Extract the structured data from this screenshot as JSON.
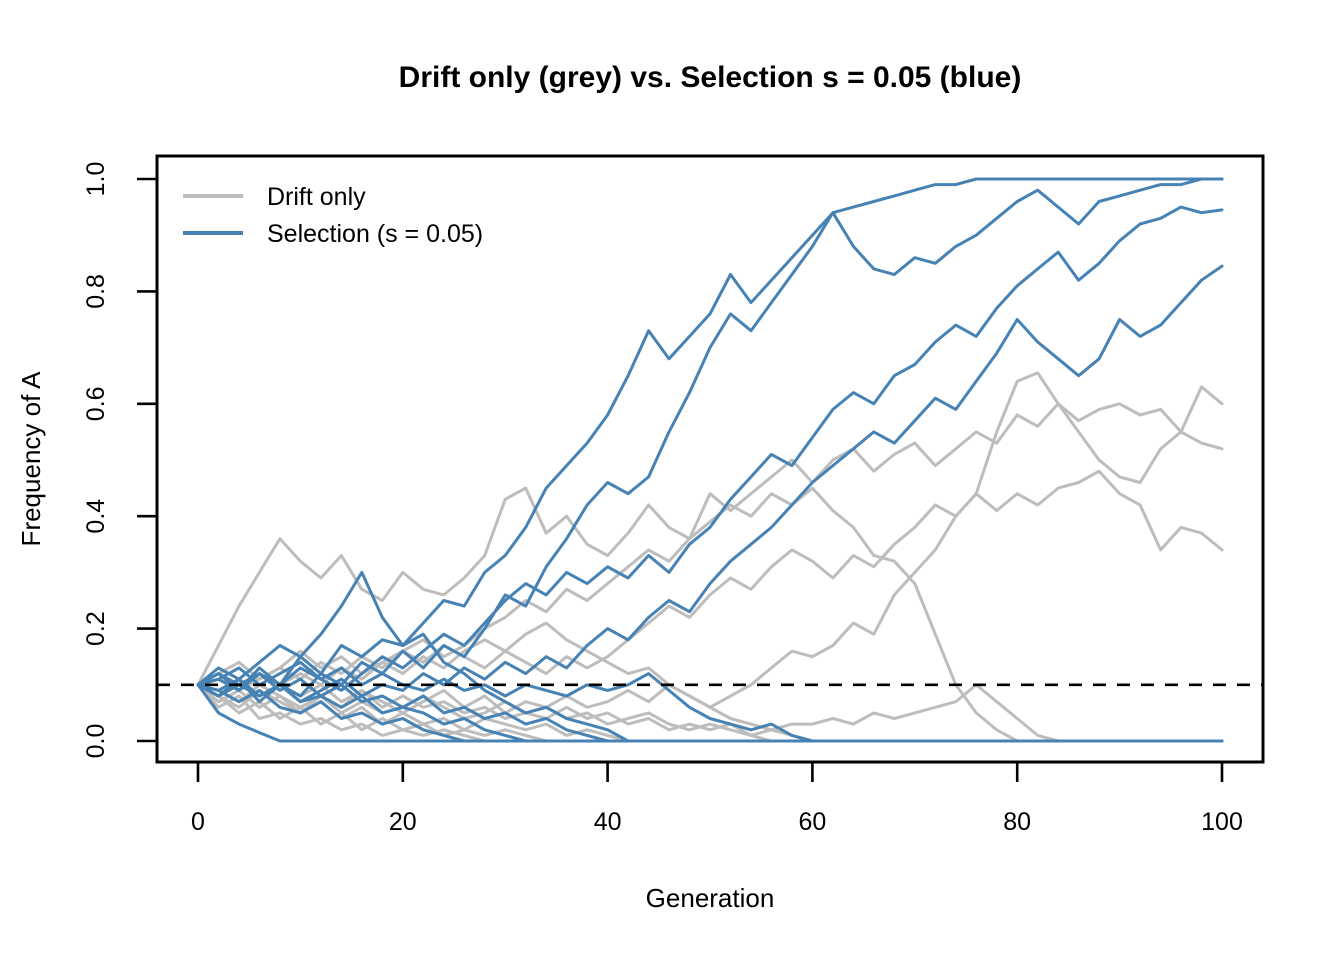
{
  "figure": {
    "background": "#ffffff"
  },
  "colors": {
    "grey_series": "#bdbdbd",
    "blue_series": "#4682B4",
    "axis": "#000000",
    "reference_line": "#000000",
    "text": "#000000"
  },
  "chart_data": {
    "type": "line",
    "title": "Drift only (grey) vs. Selection s = 0.05 (blue)",
    "xlabel": "Generation",
    "ylabel": "Frequency of A",
    "xlim": [
      0,
      100
    ],
    "ylim": [
      0,
      1
    ],
    "grid": false,
    "x_ticks": [
      0,
      20,
      40,
      60,
      80,
      100
    ],
    "x_tick_labels": [
      "0",
      "20",
      "40",
      "60",
      "80",
      "100"
    ],
    "y_ticks": [
      0,
      0.2,
      0.4,
      0.6,
      0.8,
      1.0
    ],
    "y_tick_labels": [
      "0.0",
      "0.2",
      "0.4",
      "0.6",
      "0.8",
      "1.0"
    ],
    "legend": {
      "position": "top-left",
      "box": false,
      "entries": [
        {
          "label": "Drift only",
          "color_key": "grey_series"
        },
        {
          "label": "Selection (s = 0.05)",
          "color_key": "blue_series"
        }
      ]
    },
    "reference_line": {
      "y": 0.1,
      "style": "dashed",
      "color_key": "reference_line"
    },
    "x": [
      0,
      2,
      4,
      6,
      8,
      10,
      12,
      14,
      16,
      18,
      20,
      22,
      24,
      26,
      28,
      30,
      32,
      34,
      36,
      38,
      40,
      42,
      44,
      46,
      48,
      50,
      52,
      54,
      56,
      58,
      60,
      62,
      64,
      66,
      68,
      70,
      72,
      74,
      76,
      78,
      80,
      82,
      84,
      86,
      88,
      90,
      92,
      94,
      96,
      98,
      100
    ],
    "series": [
      {
        "name": "drift-1",
        "group": "grey_series",
        "values": [
          0.1,
          0.17,
          0.24,
          0.3,
          0.36,
          0.32,
          0.29,
          0.33,
          0.27,
          0.25,
          0.3,
          0.27,
          0.26,
          0.29,
          0.33,
          0.43,
          0.45,
          0.37,
          0.4,
          0.35,
          0.33,
          0.37,
          0.42,
          0.38,
          0.36,
          0.44,
          0.41,
          0.44,
          0.47,
          0.5,
          0.46,
          0.5,
          0.52,
          0.48,
          0.51,
          0.53,
          0.49,
          0.52,
          0.55,
          0.53,
          0.58,
          0.56,
          0.6,
          0.57,
          0.59,
          0.6,
          0.58,
          0.59,
          0.55,
          0.53,
          0.52
        ]
      },
      {
        "name": "drift-2",
        "group": "grey_series",
        "values": [
          0.1,
          0.08,
          0.06,
          0.09,
          0.07,
          0.05,
          0.08,
          0.06,
          0.09,
          0.07,
          0.05,
          0.07,
          0.09,
          0.06,
          0.08,
          0.05,
          0.07,
          0.06,
          0.08,
          0.06,
          0.07,
          0.09,
          0.07,
          0.1,
          0.08,
          0.06,
          0.08,
          0.1,
          0.13,
          0.16,
          0.15,
          0.17,
          0.21,
          0.19,
          0.26,
          0.3,
          0.34,
          0.4,
          0.44,
          0.55,
          0.64,
          0.655,
          0.6,
          0.55,
          0.5,
          0.47,
          0.46,
          0.52,
          0.55,
          0.63,
          0.6
        ]
      },
      {
        "name": "drift-3",
        "group": "grey_series",
        "values": [
          0.1,
          0.12,
          0.14,
          0.11,
          0.13,
          0.16,
          0.13,
          0.15,
          0.12,
          0.14,
          0.16,
          0.14,
          0.17,
          0.15,
          0.13,
          0.16,
          0.14,
          0.12,
          0.15,
          0.13,
          0.15,
          0.18,
          0.21,
          0.24,
          0.22,
          0.26,
          0.29,
          0.27,
          0.31,
          0.34,
          0.32,
          0.29,
          0.33,
          0.31,
          0.35,
          0.38,
          0.42,
          0.4,
          0.44,
          0.41,
          0.44,
          0.42,
          0.45,
          0.46,
          0.48,
          0.44,
          0.42,
          0.34,
          0.38,
          0.37,
          0.34
        ]
      },
      {
        "name": "drift-4",
        "group": "grey_series",
        "values": [
          0.1,
          0.09,
          0.11,
          0.08,
          0.1,
          0.12,
          0.1,
          0.13,
          0.11,
          0.14,
          0.12,
          0.15,
          0.13,
          0.16,
          0.18,
          0.16,
          0.19,
          0.21,
          0.18,
          0.16,
          0.14,
          0.12,
          0.13,
          0.1,
          0.08,
          0.06,
          0.04,
          0.03,
          0.02,
          0.03,
          0.03,
          0.04,
          0.03,
          0.05,
          0.04,
          0.05,
          0.06,
          0.07,
          0.1,
          0.07,
          0.04,
          0.01,
          0,
          0,
          0,
          0,
          0,
          0,
          0,
          0,
          0
        ]
      },
      {
        "name": "drift-5",
        "group": "grey_series",
        "values": [
          0.1,
          0.07,
          0.09,
          0.06,
          0.08,
          0.05,
          0.07,
          0.04,
          0.06,
          0.03,
          0.05,
          0.03,
          0.04,
          0.02,
          0.04,
          0.03,
          0.02,
          0.03,
          0.01,
          0.02,
          0.01,
          0,
          0,
          0,
          0,
          0,
          0,
          0,
          0,
          0,
          0,
          0,
          0,
          0,
          0,
          0,
          0,
          0,
          0,
          0,
          0,
          0,
          0,
          0,
          0,
          0,
          0,
          0,
          0,
          0,
          0
        ]
      },
      {
        "name": "drift-6",
        "group": "grey_series",
        "values": [
          0.1,
          0.08,
          0.05,
          0.07,
          0.04,
          0.06,
          0.03,
          0.05,
          0.02,
          0.04,
          0.02,
          0.03,
          0.01,
          0.02,
          0.01,
          0.02,
          0.01,
          0,
          0,
          0,
          0,
          0,
          0,
          0,
          0,
          0,
          0,
          0,
          0,
          0,
          0,
          0,
          0,
          0,
          0,
          0,
          0,
          0,
          0,
          0,
          0,
          0,
          0,
          0,
          0,
          0,
          0,
          0,
          0,
          0,
          0
        ]
      },
      {
        "name": "drift-7",
        "group": "grey_series",
        "values": [
          0.1,
          0.06,
          0.08,
          0.04,
          0.05,
          0.03,
          0.04,
          0.02,
          0.03,
          0.01,
          0.02,
          0.01,
          0.02,
          0.01,
          0,
          0,
          0,
          0,
          0,
          0,
          0,
          0,
          0,
          0,
          0,
          0,
          0,
          0,
          0,
          0,
          0,
          0,
          0,
          0,
          0,
          0,
          0,
          0,
          0,
          0,
          0,
          0,
          0,
          0,
          0,
          0,
          0,
          0,
          0,
          0,
          0
        ]
      },
      {
        "name": "drift-8",
        "group": "grey_series",
        "values": [
          0.1,
          0.11,
          0.09,
          0.12,
          0.1,
          0.08,
          0.1,
          0.07,
          0.09,
          0.06,
          0.08,
          0.06,
          0.07,
          0.05,
          0.06,
          0.04,
          0.05,
          0.06,
          0.04,
          0.05,
          0.03,
          0.04,
          0.05,
          0.03,
          0.02,
          0.03,
          0.02,
          0.01,
          0,
          0,
          0,
          0,
          0,
          0,
          0,
          0,
          0,
          0,
          0,
          0,
          0,
          0,
          0,
          0,
          0,
          0,
          0,
          0,
          0,
          0,
          0
        ]
      },
      {
        "name": "drift-9",
        "group": "grey_series",
        "values": [
          0.1,
          0.12,
          0.09,
          0.11,
          0.13,
          0.11,
          0.14,
          0.12,
          0.15,
          0.13,
          0.16,
          0.18,
          0.15,
          0.17,
          0.2,
          0.22,
          0.25,
          0.23,
          0.27,
          0.25,
          0.28,
          0.31,
          0.34,
          0.32,
          0.36,
          0.39,
          0.42,
          0.4,
          0.44,
          0.42,
          0.45,
          0.41,
          0.38,
          0.33,
          0.32,
          0.28,
          0.19,
          0.1,
          0.05,
          0.02,
          0,
          0,
          0,
          0,
          0,
          0,
          0,
          0,
          0,
          0,
          0
        ]
      },
      {
        "name": "drift-10",
        "group": "grey_series",
        "values": [
          0.1,
          0.09,
          0.07,
          0.1,
          0.08,
          0.06,
          0.08,
          0.05,
          0.07,
          0.05,
          0.06,
          0.08,
          0.06,
          0.04,
          0.05,
          0.07,
          0.05,
          0.04,
          0.06,
          0.04,
          0.05,
          0.03,
          0.04,
          0.02,
          0.03,
          0.02,
          0.03,
          0.01,
          0.02,
          0.01,
          0,
          0,
          0,
          0,
          0,
          0,
          0,
          0,
          0,
          0,
          0,
          0,
          0,
          0,
          0,
          0,
          0,
          0,
          0,
          0,
          0
        ]
      },
      {
        "name": "selection-1",
        "group": "blue_series",
        "values": [
          0.1,
          0.12,
          0.09,
          0.13,
          0.1,
          0.15,
          0.12,
          0.17,
          0.15,
          0.18,
          0.17,
          0.21,
          0.25,
          0.24,
          0.3,
          0.33,
          0.38,
          0.45,
          0.49,
          0.53,
          0.58,
          0.65,
          0.73,
          0.68,
          0.72,
          0.76,
          0.83,
          0.78,
          0.82,
          0.86,
          0.9,
          0.94,
          0.95,
          0.96,
          0.97,
          0.98,
          0.99,
          0.99,
          1.0,
          1.0,
          1.0,
          1.0,
          1.0,
          1.0,
          1.0,
          1.0,
          1.0,
          1.0,
          1.0,
          1.0,
          1.0
        ]
      },
      {
        "name": "selection-2",
        "group": "blue_series",
        "values": [
          0.1,
          0.08,
          0.11,
          0.07,
          0.1,
          0.08,
          0.12,
          0.1,
          0.14,
          0.12,
          0.16,
          0.13,
          0.17,
          0.15,
          0.2,
          0.26,
          0.24,
          0.31,
          0.36,
          0.42,
          0.46,
          0.44,
          0.47,
          0.55,
          0.62,
          0.7,
          0.76,
          0.73,
          0.78,
          0.83,
          0.88,
          0.94,
          0.88,
          0.84,
          0.83,
          0.86,
          0.85,
          0.88,
          0.9,
          0.93,
          0.96,
          0.98,
          0.95,
          0.92,
          0.96,
          0.97,
          0.98,
          0.99,
          0.99,
          1.0,
          1.0
        ]
      },
      {
        "name": "selection-3",
        "group": "blue_series",
        "values": [
          0.1,
          0.11,
          0.09,
          0.12,
          0.1,
          0.13,
          0.11,
          0.09,
          0.12,
          0.15,
          0.13,
          0.16,
          0.19,
          0.17,
          0.21,
          0.25,
          0.28,
          0.26,
          0.3,
          0.28,
          0.31,
          0.29,
          0.33,
          0.3,
          0.35,
          0.38,
          0.43,
          0.47,
          0.51,
          0.49,
          0.54,
          0.59,
          0.62,
          0.6,
          0.65,
          0.67,
          0.71,
          0.74,
          0.72,
          0.77,
          0.81,
          0.84,
          0.87,
          0.82,
          0.85,
          0.89,
          0.92,
          0.93,
          0.95,
          0.94,
          0.945
        ]
      },
      {
        "name": "selection-4",
        "group": "blue_series",
        "values": [
          0.1,
          0.09,
          0.11,
          0.08,
          0.1,
          0.07,
          0.09,
          0.11,
          0.08,
          0.1,
          0.09,
          0.12,
          0.1,
          0.13,
          0.11,
          0.14,
          0.12,
          0.15,
          0.13,
          0.17,
          0.2,
          0.18,
          0.22,
          0.25,
          0.23,
          0.28,
          0.32,
          0.35,
          0.38,
          0.42,
          0.46,
          0.49,
          0.52,
          0.55,
          0.53,
          0.57,
          0.61,
          0.59,
          0.64,
          0.69,
          0.75,
          0.71,
          0.68,
          0.65,
          0.68,
          0.75,
          0.72,
          0.74,
          0.78,
          0.82,
          0.845
        ]
      },
      {
        "name": "selection-5",
        "group": "blue_series",
        "values": [
          0.1,
          0.05,
          0.03,
          0.015,
          0,
          0,
          0,
          0,
          0,
          0,
          0,
          0,
          0,
          0,
          0,
          0,
          0,
          0,
          0,
          0,
          0,
          0,
          0,
          0,
          0,
          0,
          0,
          0,
          0,
          0,
          0,
          0,
          0,
          0,
          0,
          0,
          0,
          0,
          0,
          0,
          0,
          0,
          0,
          0,
          0,
          0,
          0,
          0,
          0,
          0,
          0
        ]
      },
      {
        "name": "selection-6",
        "group": "blue_series",
        "values": [
          0.1,
          0.09,
          0.07,
          0.09,
          0.06,
          0.05,
          0.07,
          0.04,
          0.05,
          0.03,
          0.04,
          0.02,
          0.01,
          0,
          0,
          0,
          0,
          0,
          0,
          0,
          0,
          0,
          0,
          0,
          0,
          0,
          0,
          0,
          0,
          0,
          0,
          0,
          0,
          0,
          0,
          0,
          0,
          0,
          0,
          0,
          0,
          0,
          0,
          0,
          0,
          0,
          0,
          0,
          0,
          0,
          0
        ]
      },
      {
        "name": "selection-7",
        "group": "blue_series",
        "values": [
          0.1,
          0.12,
          0.1,
          0.08,
          0.1,
          0.07,
          0.08,
          0.06,
          0.08,
          0.05,
          0.06,
          0.08,
          0.05,
          0.06,
          0.04,
          0.05,
          0.03,
          0.04,
          0.02,
          0.01,
          0,
          0,
          0,
          0,
          0,
          0,
          0,
          0,
          0,
          0,
          0,
          0,
          0,
          0,
          0,
          0,
          0,
          0,
          0,
          0,
          0,
          0,
          0,
          0,
          0,
          0,
          0,
          0,
          0,
          0,
          0
        ]
      },
      {
        "name": "selection-8",
        "group": "blue_series",
        "values": [
          0.1,
          0.11,
          0.13,
          0.1,
          0.12,
          0.14,
          0.11,
          0.13,
          0.1,
          0.12,
          0.1,
          0.09,
          0.11,
          0.09,
          0.1,
          0.08,
          0.1,
          0.09,
          0.08,
          0.1,
          0.09,
          0.1,
          0.12,
          0.09,
          0.06,
          0.04,
          0.03,
          0.02,
          0.03,
          0.01,
          0,
          0,
          0,
          0,
          0,
          0,
          0,
          0,
          0,
          0,
          0,
          0,
          0,
          0,
          0,
          0,
          0,
          0,
          0,
          0,
          0
        ]
      },
      {
        "name": "selection-9",
        "group": "blue_series",
        "values": [
          0.1,
          0.13,
          0.11,
          0.14,
          0.17,
          0.15,
          0.19,
          0.24,
          0.3,
          0.22,
          0.17,
          0.19,
          0.14,
          0.12,
          0.09,
          0.07,
          0.05,
          0.06,
          0.04,
          0.03,
          0.02,
          0,
          0,
          0,
          0,
          0,
          0,
          0,
          0,
          0,
          0,
          0,
          0,
          0,
          0,
          0,
          0,
          0,
          0,
          0,
          0,
          0,
          0,
          0,
          0,
          0,
          0,
          0,
          0,
          0,
          0
        ]
      },
      {
        "name": "selection-10",
        "group": "blue_series",
        "values": [
          0.1,
          0.08,
          0.1,
          0.12,
          0.09,
          0.11,
          0.08,
          0.1,
          0.07,
          0.08,
          0.06,
          0.05,
          0.03,
          0.04,
          0.02,
          0.01,
          0,
          0,
          0,
          0,
          0,
          0,
          0,
          0,
          0,
          0,
          0,
          0,
          0,
          0,
          0,
          0,
          0,
          0,
          0,
          0,
          0,
          0,
          0,
          0,
          0,
          0,
          0,
          0,
          0,
          0,
          0,
          0,
          0,
          0,
          0
        ]
      }
    ]
  }
}
